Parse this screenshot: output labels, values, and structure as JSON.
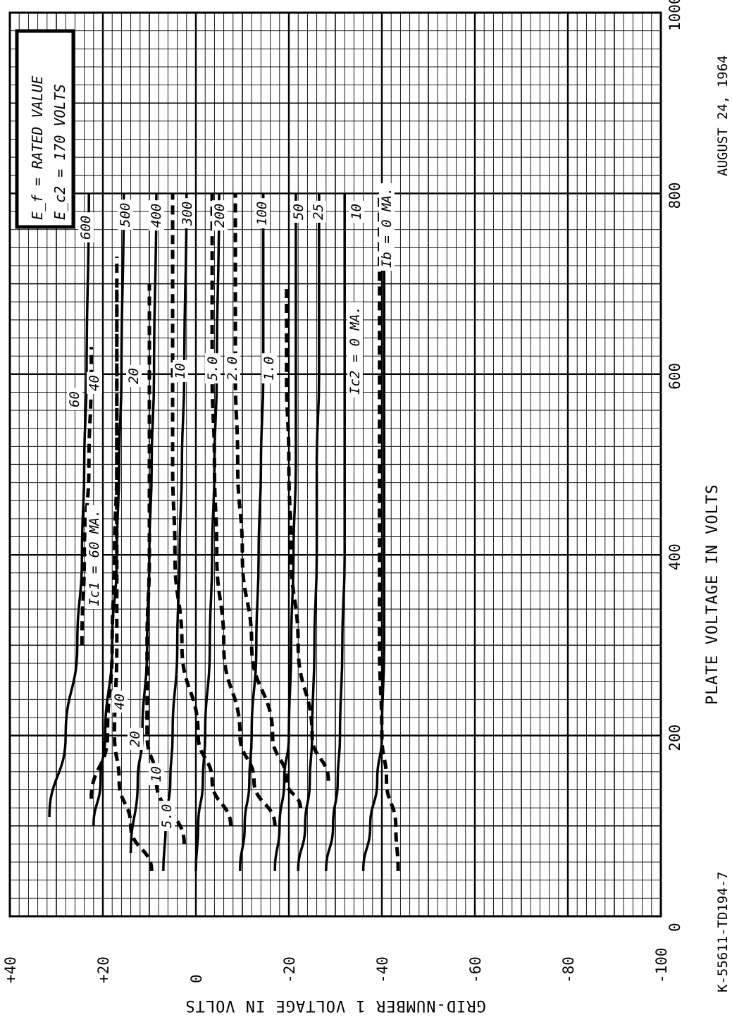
{
  "chart_data": {
    "type": "line",
    "title": "",
    "xlabel": "PLATE VOLTAGE IN VOLTS",
    "ylabel": "GRID-NUMBER 1 VOLTAGE IN VOLTS",
    "xlim": [
      0,
      1000
    ],
    "ylim": [
      -100,
      40
    ],
    "x_ticks": [
      "0",
      "200",
      "400",
      "600",
      "800",
      "1000"
    ],
    "y_ticks": [
      "+40",
      "+20",
      "0",
      "-20",
      "-40",
      "-60",
      "-80",
      "-100"
    ],
    "grid": true,
    "orientation": "rotated-90-ccw",
    "legend": {
      "lines": [
        "E_f = RATED VALUE",
        "E_c2 = 170 VOLTS"
      ],
      "placement": "top-left"
    },
    "notes": {
      "drawing_number": "K-55611-TD194-7",
      "date": "AUGUST 24, 1964"
    },
    "series_groups": [
      {
        "name": "Ib (plate current, MA)",
        "style": "solid"
      },
      {
        "name": "Ic1 (grid-no.1 current, MA)",
        "style": "dashed"
      },
      {
        "name": "Ic2 (grid-no.2 current, MA)",
        "style": "dashed"
      }
    ],
    "series": [
      {
        "group": "Ib",
        "label": "600",
        "style": "solid",
        "x": [
          110,
          200,
          300,
          400,
          500,
          600,
          800
        ],
        "y": [
          31.5,
          28,
          25.5,
          24.5,
          24,
          23.5,
          23
        ]
      },
      {
        "group": "Ib",
        "label": "500",
        "style": "solid",
        "x": [
          100,
          150,
          200,
          300,
          400,
          500,
          600,
          800
        ],
        "y": [
          22,
          20.5,
          19.5,
          18,
          17,
          16.5,
          16,
          15.5
        ]
      },
      {
        "group": "Ib",
        "label": "400",
        "style": "solid",
        "x": [
          70,
          150,
          200,
          300,
          400,
          500,
          600,
          800
        ],
        "y": [
          14,
          12.5,
          11.5,
          10.5,
          10,
          9.5,
          9,
          8.5
        ]
      },
      {
        "group": "Ib",
        "label": "300",
        "style": "solid",
        "x": [
          50,
          100,
          150,
          200,
          300,
          400,
          500,
          600,
          800
        ],
        "y": [
          7,
          6.5,
          5.5,
          5,
          4,
          3.5,
          3,
          2.5,
          2
        ]
      },
      {
        "group": "Ib",
        "label": "200",
        "style": "solid",
        "x": [
          50,
          100,
          150,
          200,
          300,
          400,
          500,
          600,
          800
        ],
        "y": [
          0,
          -0.5,
          -1.5,
          -2,
          -3,
          -3.5,
          -4,
          -4.5,
          -5
        ]
      },
      {
        "group": "Ib",
        "label": "100",
        "style": "solid",
        "x": [
          50,
          100,
          150,
          200,
          300,
          400,
          500,
          600,
          800
        ],
        "y": [
          -9.5,
          -10.5,
          -11.5,
          -12,
          -13,
          -13.5,
          -14,
          -14.5,
          -14.5
        ]
      },
      {
        "group": "Ib",
        "label": "50",
        "style": "solid",
        "x": [
          50,
          100,
          150,
          200,
          300,
          400,
          500,
          600,
          800
        ],
        "y": [
          -17,
          -18,
          -19,
          -20,
          -20.5,
          -21,
          -21.5,
          -21.5,
          -21.5
        ]
      },
      {
        "group": "Ib",
        "label": "25",
        "style": "solid",
        "x": [
          50,
          100,
          150,
          200,
          300,
          400,
          500,
          600,
          800
        ],
        "y": [
          -22,
          -23.5,
          -24.5,
          -25,
          -25.5,
          -26,
          -26,
          -26.5,
          -26.5
        ]
      },
      {
        "group": "Ib",
        "label": "10",
        "style": "solid",
        "x": [
          50,
          100,
          150,
          200,
          300,
          400,
          500,
          600,
          800
        ],
        "y": [
          -28,
          -29.5,
          -30.5,
          -31,
          -31.5,
          -32,
          -32,
          -32,
          -32
        ]
      },
      {
        "group": "Ib",
        "label": "0",
        "style": "solid",
        "x": [
          50,
          100,
          150,
          200,
          300,
          400,
          500,
          600,
          800
        ],
        "y": [
          -36,
          -37.5,
          -39,
          -40,
          -40.5,
          -40.5,
          -40.5,
          -40.5,
          -40.5
        ]
      },
      {
        "group": "Ic1",
        "label": "60",
        "style": "dashed",
        "x": [
          300,
          400,
          500,
          600,
          630
        ],
        "y": [
          24.5,
          24,
          23,
          22.5,
          22.5
        ]
      },
      {
        "group": "Ic1",
        "label": "40",
        "style": "dashed",
        "x": [
          130,
          200,
          300,
          400,
          500,
          600,
          700
        ],
        "y": [
          22.5,
          19,
          18,
          17.5,
          17,
          17,
          17
        ]
      },
      {
        "group": "Ic1",
        "label": "20",
        "style": "dashed",
        "x": [
          50,
          100,
          150,
          200,
          300,
          400,
          500,
          600,
          730
        ],
        "y": [
          9.5,
          14,
          16.5,
          17.5,
          17,
          17,
          17,
          17,
          17
        ]
      },
      {
        "group": "Ic1",
        "label": "10",
        "style": "dashed",
        "x": [
          80,
          150,
          200,
          300,
          400,
          500,
          600,
          700
        ],
        "y": [
          2.5,
          8.5,
          10.5,
          10.5,
          10,
          10,
          10,
          10
        ]
      },
      {
        "group": "Ic1",
        "label": "5.0",
        "style": "dashed",
        "x": [
          100,
          150,
          200,
          300,
          400,
          500,
          600,
          800
        ],
        "y": [
          -7.5,
          -3.5,
          -0.5,
          3,
          4.5,
          5,
          5,
          5
        ]
      },
      {
        "group": "Ic1",
        "label": "2.0",
        "style": "dashed",
        "x": [
          100,
          150,
          200,
          300,
          400,
          500,
          600,
          800
        ],
        "y": [
          -17,
          -12.5,
          -9.5,
          -6,
          -4.5,
          -4,
          -3.5,
          -3.5
        ]
      },
      {
        "group": "Ic1",
        "label": "1.0",
        "style": "dashed",
        "x": [
          120,
          150,
          200,
          300,
          400,
          500,
          600,
          800
        ],
        "y": [
          -22.5,
          -19.5,
          -16.5,
          -12,
          -10,
          -9,
          -8.5,
          -8.5
        ]
      },
      {
        "group": "Ic2",
        "label": "0",
        "style": "dashed",
        "x": [
          150,
          200,
          300,
          400,
          500,
          600,
          700
        ],
        "y": [
          -28.5,
          -25,
          -22,
          -20.5,
          -20,
          -19.5,
          -19.5
        ]
      },
      {
        "group": "Ic2",
        "label": "0 (lower)",
        "style": "dashed",
        "x": [
          50,
          100,
          150,
          200,
          300,
          400,
          500,
          600,
          800
        ],
        "y": [
          -43.5,
          -43,
          -41,
          -40,
          -39.5,
          -39.5,
          -39.5,
          -39.5,
          -39.5
        ]
      }
    ],
    "curve_labels": [
      {
        "text": "600"
      },
      {
        "text": "500"
      },
      {
        "text": "400"
      },
      {
        "text": "300"
      },
      {
        "text": "200"
      },
      {
        "text": "100"
      },
      {
        "text": "50"
      },
      {
        "text": "25"
      },
      {
        "text": "10"
      },
      {
        "text": "Ib = 0 MA."
      },
      {
        "text": "60"
      },
      {
        "text": "40"
      },
      {
        "text": "20"
      },
      {
        "text": "10"
      },
      {
        "text": "5.0"
      },
      {
        "text": "2.0"
      },
      {
        "text": "1.0"
      },
      {
        "text": "Ic2 = 0 MA."
      },
      {
        "text": "Ic1 = 60 MA."
      },
      {
        "text": "40"
      },
      {
        "text": "20"
      },
      {
        "text": "10"
      },
      {
        "text": "5.0"
      }
    ]
  }
}
